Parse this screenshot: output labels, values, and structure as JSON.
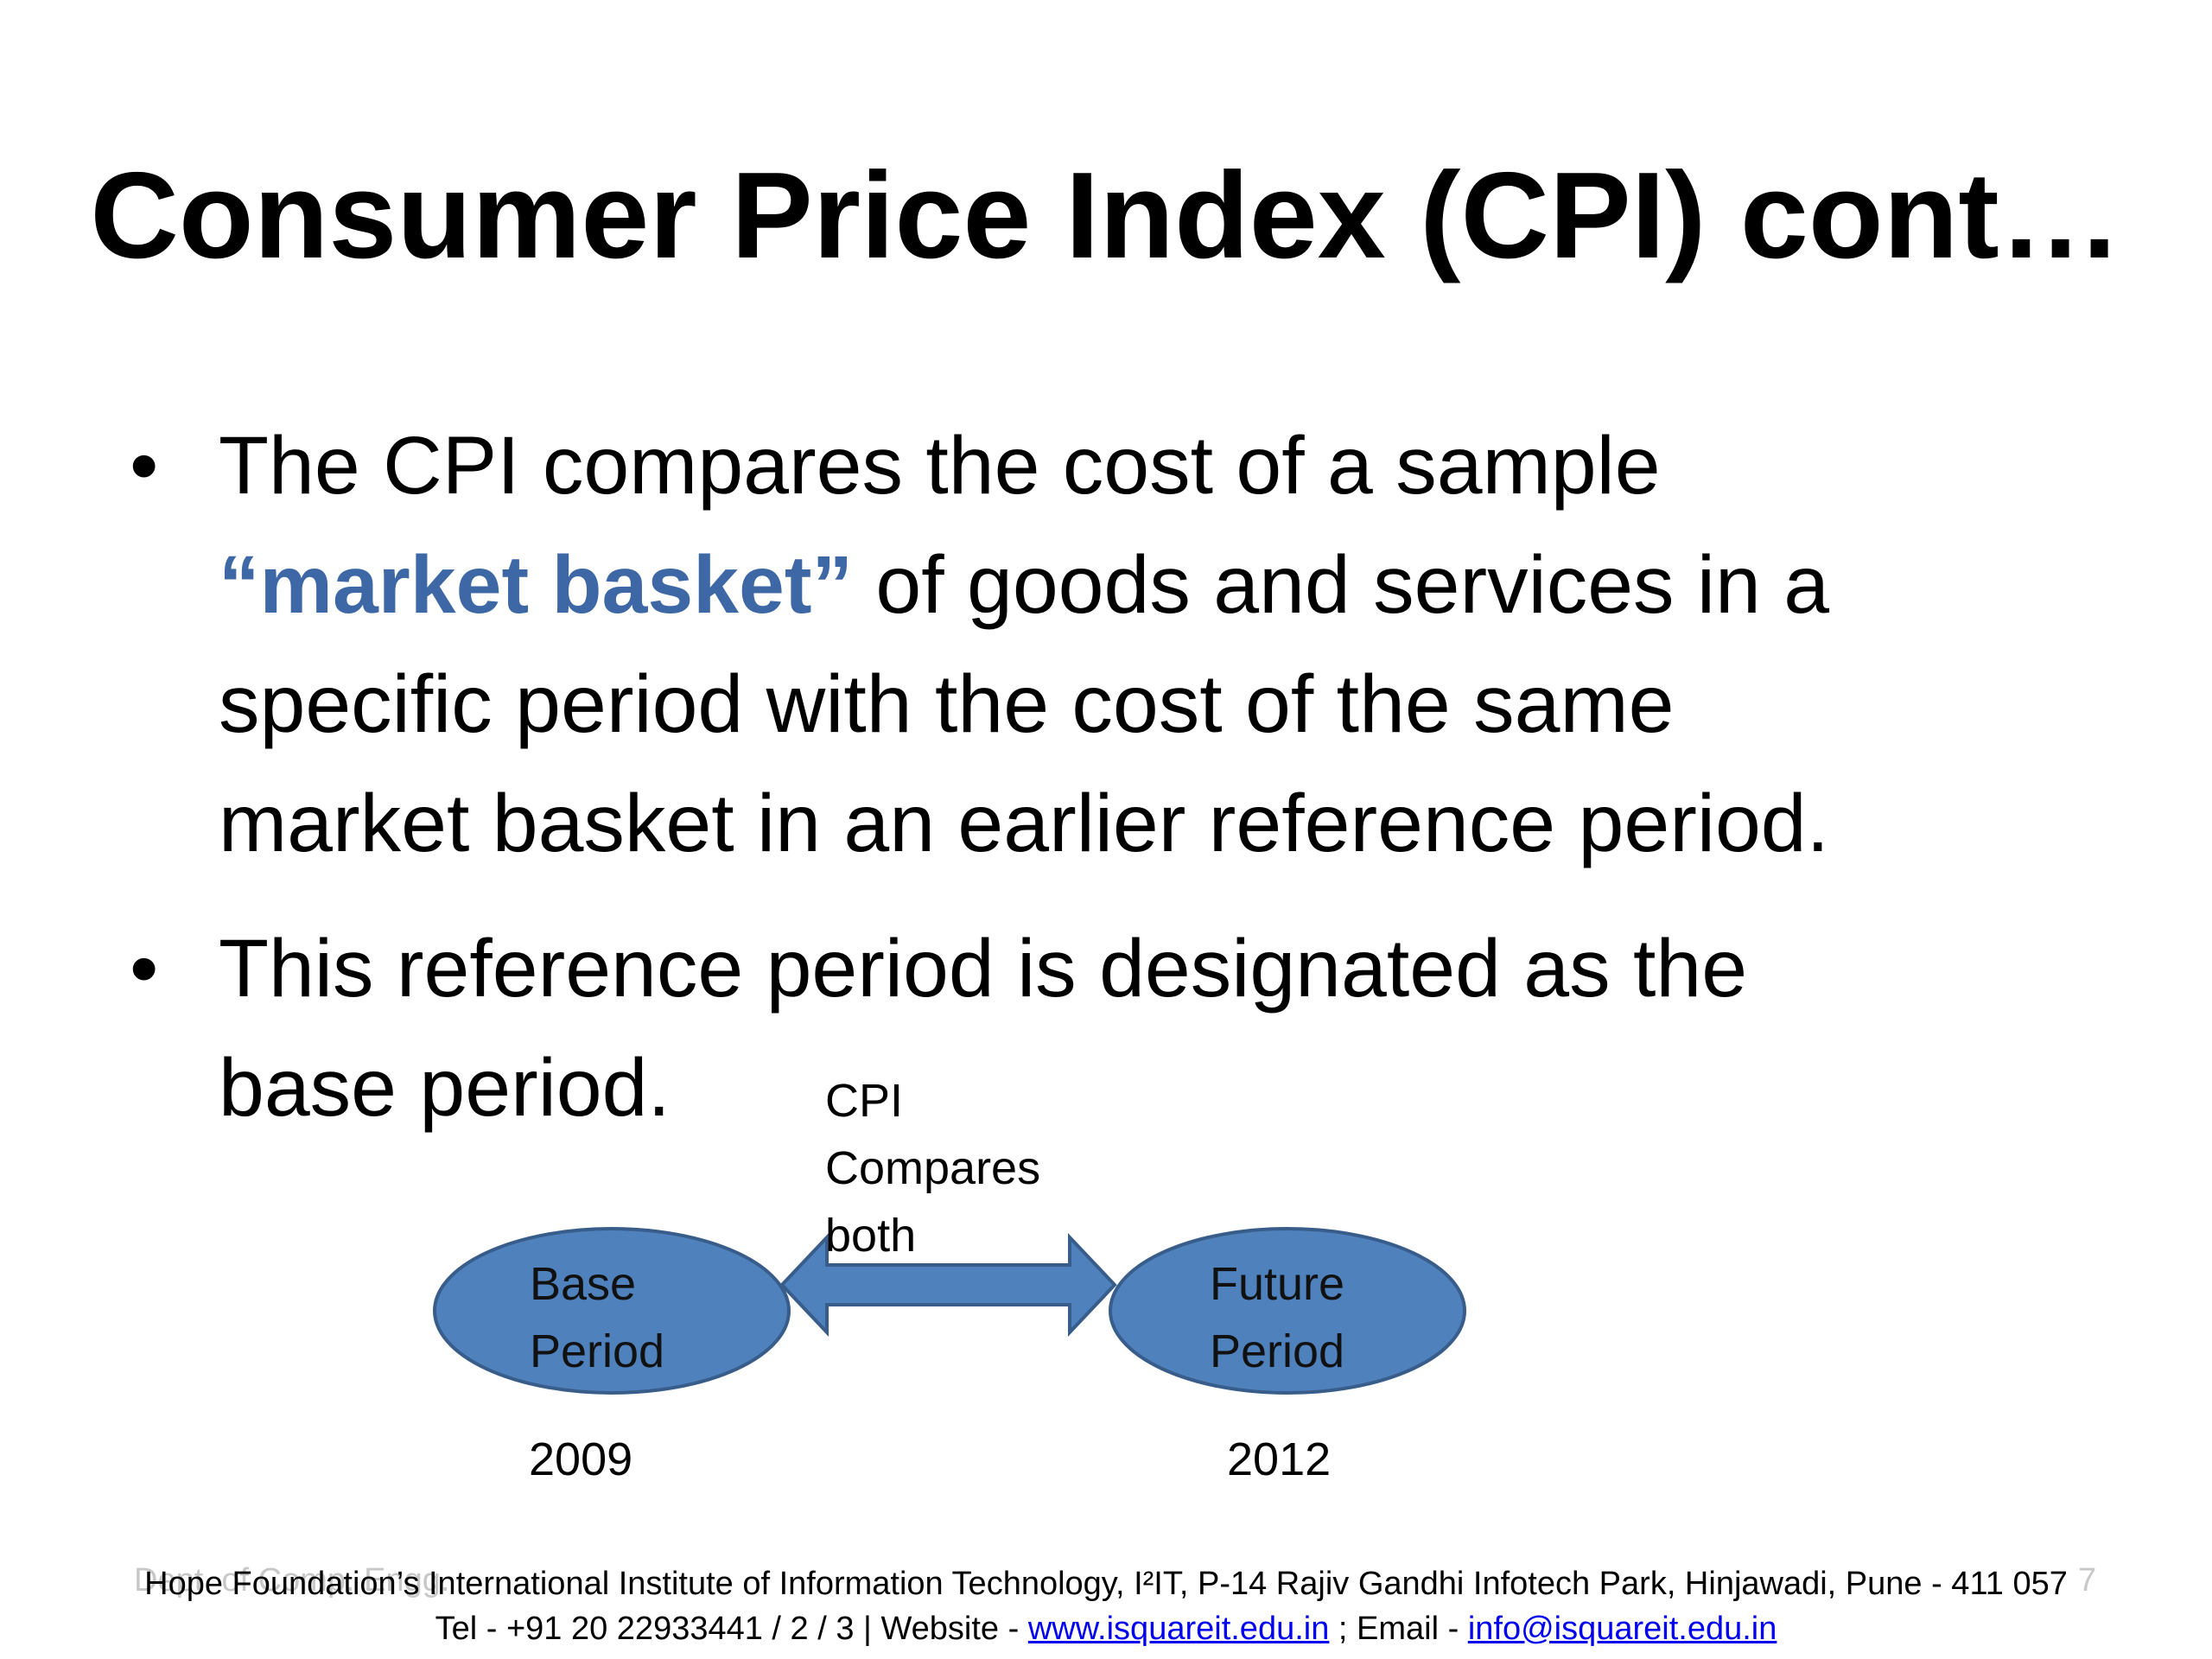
{
  "slide": {
    "title": "Consumer Price Index (CPI) cont…",
    "bullets": [
      {
        "marker": "•",
        "line1": "The CPI compares the cost of a sample",
        "line2_highlight": "“market basket”",
        "line2_rest": " of goods and services in a",
        "line3": "specific period with the cost of the same",
        "line4": "market basket in an earlier reference period."
      },
      {
        "marker": "•",
        "line1": "This reference period is designated as the",
        "line2": "base period."
      }
    ]
  },
  "diagram": {
    "arrow_label": [
      "CPI",
      "Compares",
      "both"
    ],
    "left_ellipse": {
      "line1": "Base",
      "line2": "Period",
      "year": "2009"
    },
    "right_ellipse": {
      "line1": "Future",
      "line2": "Period",
      "year": "2012"
    }
  },
  "footer": {
    "dept": "Dept. of Comp. Engg.",
    "slide_number": "7",
    "line1": "Hope Foundation’s International Institute of Information Technology, I²IT, P-14 Rajiv Gandhi Infotech Park, Hinjawadi, Pune - 411 057",
    "line2_prefix": "Tel - +91 20 22933441 / 2 / 3  |  Website - ",
    "website": "www.isquareit.edu.in",
    "line2_mid": " ; Email - ",
    "email": "info@isquareit.edu.in"
  },
  "colors": {
    "highlight": "#3d68a5",
    "shape_fill": "#4f81bd",
    "shape_stroke": "#385d8a",
    "link": "#0000ee"
  }
}
